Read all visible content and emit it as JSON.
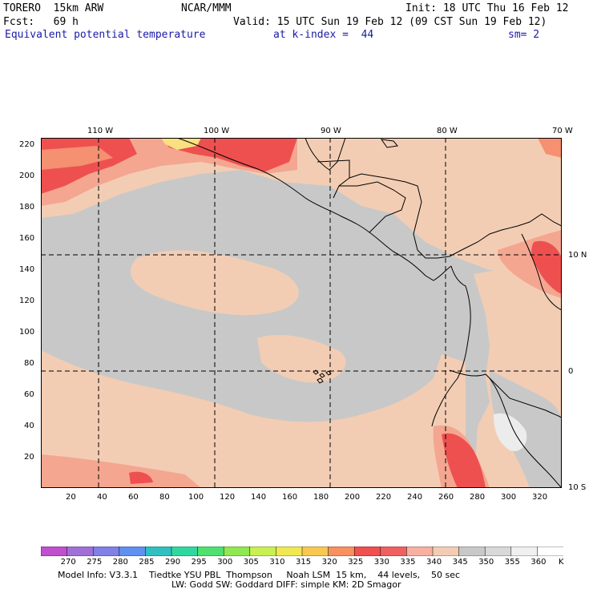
{
  "header": {
    "model": "TORERO  15km ARW",
    "org": "NCAR/MMM",
    "init": "Init: 18 UTC Thu 16 Feb 12",
    "fcst": "Fcst:   69 h",
    "valid": "Valid: 15 UTC Sun 19 Feb 12 (09 CST Sun 19 Feb 12)",
    "field": "Equivalent potential temperature",
    "level": "at k-index =  44",
    "smooth": "sm= 2"
  },
  "map": {
    "lon_labels": [
      "110 W",
      "100 W",
      "90 W",
      "80 W",
      "70 W"
    ],
    "lat_labels": [
      "10 N",
      "0",
      "10 S"
    ],
    "y_ticks": [
      "220",
      "200",
      "180",
      "160",
      "140",
      "120",
      "100",
      "80",
      "60",
      "40",
      "20"
    ],
    "x_ticks": [
      "20",
      "40",
      "60",
      "80",
      "100",
      "120",
      "140",
      "160",
      "180",
      "200",
      "220",
      "240",
      "260",
      "280",
      "300",
      "320"
    ],
    "grid_x": [
      38,
      113,
      188,
      263
    ],
    "grid_y": [
      76,
      151
    ],
    "colors": {
      "gray": "#c8c8c8",
      "tan": "#f2cdb4",
      "salmon": "#f4a690",
      "red": "#ee5050",
      "orange": "#f59070",
      "yellow": "#f9e080",
      "light": "#ececec"
    }
  },
  "colorbar": {
    "labels": [
      "270",
      "275",
      "280",
      "285",
      "290",
      "295",
      "300",
      "305",
      "310",
      "315",
      "320",
      "325",
      "330",
      "335",
      "340",
      "345",
      "350",
      "355",
      "360"
    ],
    "unit": "K",
    "colors": [
      "#c050d0",
      "#a070d8",
      "#8080e8",
      "#6090f0",
      "#30c0c0",
      "#30d8a0",
      "#50e070",
      "#90e850",
      "#c8f050",
      "#f0e850",
      "#f8c850",
      "#f89060",
      "#f05050",
      "#f06060",
      "#f8b0a0",
      "#f2cdb4",
      "#c8c8c8",
      "#d8d8d8",
      "#f0f0f0",
      "#ffffff"
    ]
  },
  "footer": {
    "line1": "Model Info: V3.3.1    Tiedtke YSU PBL  Thompson     Noah LSM  15 km,    44 levels,    50 sec",
    "line2": "LW: Godd SW: Goddard DIFF: simple KM: 2D Smagor"
  }
}
